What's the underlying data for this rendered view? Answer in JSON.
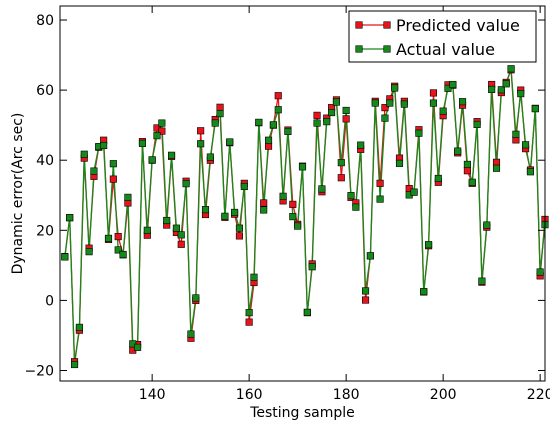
{
  "chart_data": {
    "type": "line",
    "xlabel": "Testing sample",
    "ylabel": "Dynamic error(Arc sec)",
    "xlim": [
      121,
      221
    ],
    "ylim": [
      -23,
      84
    ],
    "xticks": [
      140,
      160,
      180,
      200,
      220
    ],
    "yticks": [
      -20,
      0,
      20,
      40,
      60,
      80
    ],
    "xtick_labels": [
      "140",
      "160",
      "180",
      "200",
      "220"
    ],
    "ytick_labels": [
      "−20",
      "0",
      "20",
      "40",
      "60",
      "80"
    ],
    "legend_position": "top-right",
    "x": [
      122,
      123,
      124,
      125,
      126,
      127,
      128,
      129,
      130,
      131,
      132,
      133,
      134,
      135,
      136,
      137,
      138,
      139,
      140,
      141,
      142,
      143,
      144,
      145,
      146,
      147,
      148,
      149,
      150,
      151,
      152,
      153,
      154,
      155,
      156,
      157,
      158,
      159,
      160,
      161,
      162,
      163,
      164,
      165,
      166,
      167,
      168,
      169,
      170,
      171,
      172,
      173,
      174,
      175,
      176,
      177,
      178,
      179,
      180,
      181,
      182,
      183,
      184,
      185,
      186,
      187,
      188,
      189,
      190,
      191,
      192,
      193,
      194,
      195,
      196,
      197,
      198,
      199,
      200,
      201,
      202,
      203,
      204,
      205,
      206,
      207,
      208,
      209,
      210,
      211,
      212,
      213,
      214,
      215,
      216,
      217,
      218,
      219,
      220,
      221
    ],
    "series": [
      {
        "name": "Predicted value",
        "color": "#e8141c",
        "values": [
          12.5,
          23.6,
          -17.5,
          -8.5,
          40.6,
          14.9,
          35.4,
          43.7,
          45.7,
          17.4,
          34.6,
          18.2,
          13.0,
          27.8,
          -14.2,
          -12.6,
          45.3,
          18.6,
          40.0,
          49.2,
          48.3,
          21.5,
          41.1,
          19.4,
          16.0,
          34.0,
          -10.8,
          -0.0,
          48.4,
          24.5,
          40.0,
          51.6,
          55.1,
          23.7,
          45.0,
          24.6,
          18.4,
          33.4,
          -6.2,
          5.1,
          50.7,
          27.8,
          44.0,
          50.0,
          58.4,
          28.4,
          48.6,
          27.4,
          21.7,
          38.3,
          -3.5,
          10.4,
          52.8,
          31.0,
          52.0,
          55.0,
          57.2,
          35.0,
          51.8,
          29.4,
          27.8,
          43.1,
          0.1,
          12.7,
          56.8,
          33.4,
          55.0,
          57.5,
          61.1,
          40.6,
          56.8,
          31.9,
          30.9,
          48.7,
          2.4,
          15.6,
          59.2,
          33.7,
          52.7,
          61.5,
          61.4,
          42.1,
          55.7,
          37.0,
          33.4,
          51.0,
          5.2,
          20.9,
          61.6,
          39.4,
          59.3,
          62.2,
          65.8,
          45.8,
          60.0,
          43.3,
          37.2,
          54.8,
          7.0,
          23.1
        ]
      },
      {
        "name": "Actual value",
        "color": "#158a1b",
        "values": [
          12.4,
          23.6,
          -18.3,
          -7.7,
          41.7,
          13.9,
          36.9,
          43.9,
          44.2,
          17.7,
          39.0,
          14.4,
          13.1,
          29.4,
          -12.4,
          -13.4,
          44.8,
          20.0,
          40.1,
          47.0,
          50.6,
          22.8,
          41.4,
          20.6,
          18.7,
          33.3,
          -9.6,
          0.7,
          44.7,
          25.9,
          40.9,
          50.6,
          53.3,
          24.0,
          45.2,
          25.1,
          20.6,
          32.5,
          -3.5,
          6.6,
          50.8,
          25.8,
          45.7,
          50.1,
          54.4,
          29.7,
          48.2,
          23.9,
          21.2,
          38.1,
          -3.4,
          9.6,
          50.6,
          31.8,
          51.0,
          53.6,
          56.6,
          39.3,
          54.2,
          29.9,
          26.6,
          44.3,
          2.7,
          12.7,
          56.3,
          28.9,
          52.0,
          56.3,
          60.6,
          39.1,
          56.0,
          30.1,
          30.9,
          47.7,
          2.5,
          15.9,
          56.3,
          34.8,
          54.0,
          60.5,
          61.6,
          42.6,
          56.7,
          38.8,
          33.7,
          50.2,
          5.5,
          21.5,
          60.2,
          37.7,
          60.1,
          61.8,
          66.1,
          47.4,
          59.0,
          44.4,
          36.7,
          54.7,
          8.1,
          21.6
        ]
      }
    ]
  }
}
